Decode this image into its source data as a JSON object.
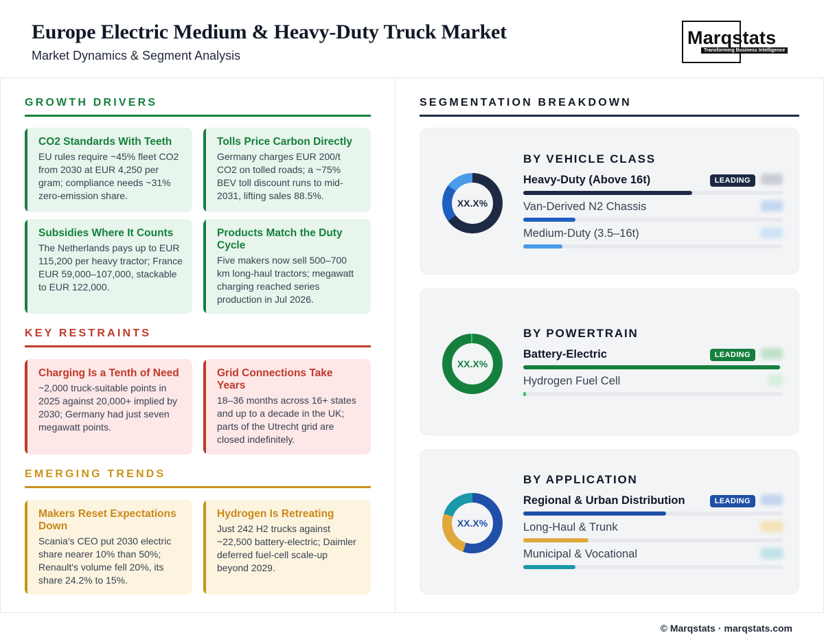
{
  "header": {
    "title": "Europe Electric Medium & Heavy-Duty Truck Market",
    "subtitle": "Market Dynamics & Segment Analysis",
    "logo_word": "Marqstats",
    "logo_tagline": "Transforming Business Intelligence"
  },
  "drivers": {
    "title": "GROWTH DRIVERS",
    "color": "#15803d",
    "cards": [
      {
        "title": "CO2 Standards With Teeth",
        "body": "EU rules require ~45% fleet CO2 from 2030 at EUR 4,250 per gram; compliance needs ~31% zero-emission share."
      },
      {
        "title": "Tolls Price Carbon Directly",
        "body": "Germany charges EUR 200/t CO2 on tolled roads; a ~75% BEV toll discount runs to mid-2031, lifting sales 88.5%."
      },
      {
        "title": "Subsidies Where It Counts",
        "body": "The Netherlands pays up to EUR 115,200 per heavy tractor; France EUR 59,000–107,000, stackable to EUR 122,000."
      },
      {
        "title": "Products Match the Duty Cycle",
        "body": "Five makers now sell 500–700 km long-haul tractors; megawatt charging reached series production in Jul 2026."
      }
    ]
  },
  "restraints": {
    "title": "KEY RESTRAINTS",
    "color": "#c0392b",
    "cards": [
      {
        "title": "Charging Is a Tenth of Need",
        "body": "~2,000 truck-suitable points in 2025 against 20,000+ implied by 2030; Germany had just seven megawatt points."
      },
      {
        "title": "Grid Connections Take Years",
        "body": "18–36 months across 16+ states and up to a decade in the UK; parts of the Utrecht grid are closed indefinitely."
      }
    ]
  },
  "trends": {
    "title": "EMERGING TRENDS",
    "color": "#c9931a",
    "cards": [
      {
        "title": "Makers Reset Expectations Down",
        "body": "Scania's CEO put 2030 electric share nearer 10% than 50%; Renault's volume fell 20%, its share 24.2% to 15%."
      },
      {
        "title": "Hydrogen Is Retreating",
        "body": "Just 242 H2 trucks against ~22,500 battery-electric; Daimler deferred fuel-cell scale-up beyond 2029."
      }
    ]
  },
  "segmentation": {
    "title": "SEGMENTATION BREAKDOWN",
    "donut_label": "XX.X%",
    "leading_badge": "LEADING",
    "groups": [
      {
        "title": "BY VEHICLE CLASS",
        "accent": "#1e2a44",
        "items": [
          {
            "name": "Heavy-Duty (Above 16t)",
            "share": 0.65,
            "color": "#1e2a44",
            "leading": true
          },
          {
            "name": "Van-Derived N2 Chassis",
            "share": 0.2,
            "color": "#1f5fbf",
            "leading": false
          },
          {
            "name": "Medium-Duty (3.5–16t)",
            "share": 0.15,
            "color": "#4a9be8",
            "leading": false
          }
        ]
      },
      {
        "title": "BY POWERTRAIN",
        "accent": "#15803d",
        "items": [
          {
            "name": "Battery-Electric",
            "share": 0.99,
            "color": "#15803d",
            "leading": true
          },
          {
            "name": "Hydrogen Fuel Cell",
            "share": 0.01,
            "color": "#34c06b",
            "leading": false
          }
        ]
      },
      {
        "title": "BY APPLICATION",
        "accent": "#1f4fa6",
        "items": [
          {
            "name": "Regional & Urban Distribution",
            "share": 0.55,
            "color": "#1f4fa6",
            "leading": true
          },
          {
            "name": "Long-Haul & Trunk",
            "share": 0.25,
            "color": "#e0a73a",
            "leading": false
          },
          {
            "name": "Municipal & Vocational",
            "share": 0.2,
            "color": "#1a9aa8",
            "leading": false
          }
        ]
      }
    ]
  },
  "footer": {
    "text": "© Marqstats · marqstats.com"
  }
}
